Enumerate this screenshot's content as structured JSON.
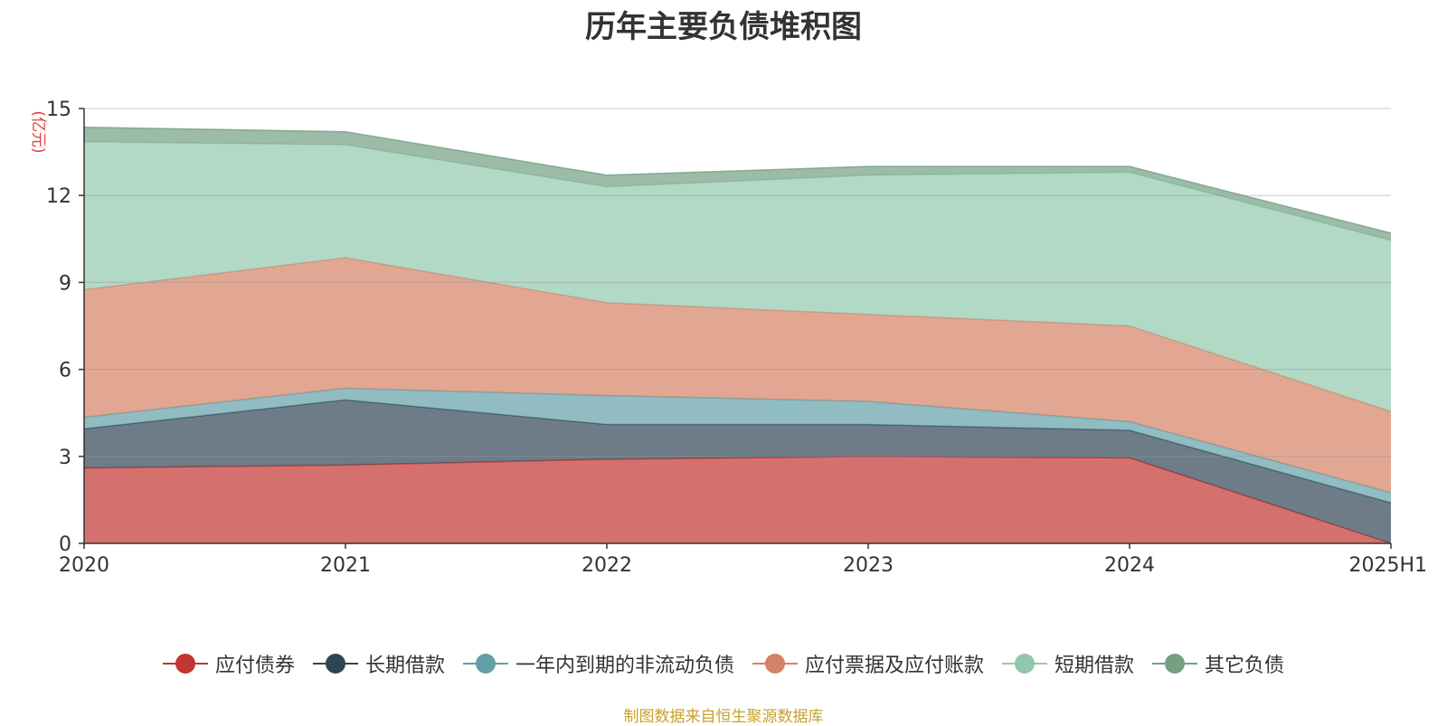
{
  "chart_data": {
    "type": "area",
    "stacked": true,
    "title": "历年主要负债堆积图",
    "ylabel": "(亿元)",
    "xlabel": "",
    "categories": [
      "2020",
      "2021",
      "2022",
      "2023",
      "2024",
      "2025H1"
    ],
    "ylim": [
      0,
      15
    ],
    "yticks": [
      0,
      3,
      6,
      9,
      12,
      15
    ],
    "grid": true,
    "legend_position": "bottom",
    "series": [
      {
        "name": "应付债券",
        "color": "#c23531",
        "values": [
          2.6,
          2.7,
          2.9,
          3.0,
          2.95,
          0.0
        ]
      },
      {
        "name": "长期借款",
        "color": "#2f4554",
        "values": [
          1.35,
          2.25,
          1.2,
          1.1,
          0.95,
          1.4
        ]
      },
      {
        "name": "一年内到期的非流动负债",
        "color": "#61a0a8",
        "values": [
          0.4,
          0.4,
          1.0,
          0.8,
          0.3,
          0.35
        ]
      },
      {
        "name": "应付票据及应付账款",
        "color": "#d48265",
        "values": [
          4.4,
          4.5,
          3.2,
          3.0,
          3.3,
          2.8
        ]
      },
      {
        "name": "短期借款",
        "color": "#91c7ae",
        "values": [
          5.1,
          3.9,
          4.0,
          4.8,
          5.3,
          5.9
        ]
      },
      {
        "name": "其它负债",
        "color": "#749f83",
        "values": [
          0.5,
          0.45,
          0.4,
          0.3,
          0.2,
          0.25
        ]
      }
    ]
  },
  "source_note": "制图数据来自恒生聚源数据库"
}
